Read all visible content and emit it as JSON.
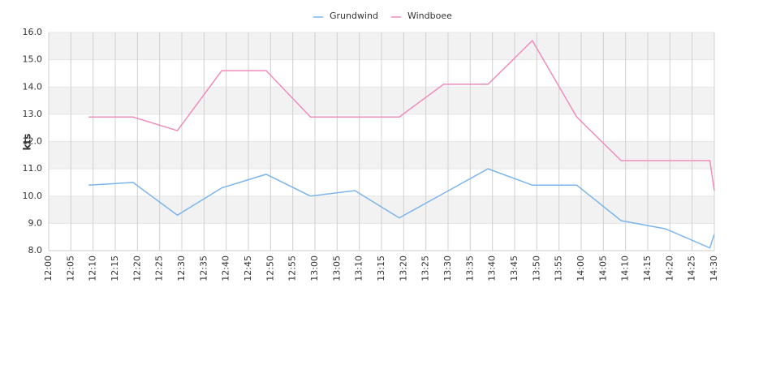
{
  "chart_data": {
    "type": "line",
    "y_label": "kts",
    "x": [
      "12:09",
      "12:19",
      "12:29",
      "12:39",
      "12:49",
      "12:59",
      "13:09",
      "13:19",
      "13:29",
      "13:39",
      "13:49",
      "13:59",
      "14:09",
      "14:19",
      "14:29",
      "14:30"
    ],
    "series": [
      {
        "name": "Grundwind",
        "color": "#7cb5ec",
        "values": [
          10.4,
          10.5,
          9.3,
          10.3,
          10.8,
          10.0,
          10.2,
          9.2,
          10.1,
          11.0,
          10.4,
          10.4,
          9.1,
          8.8,
          8.1,
          8.6
        ]
      },
      {
        "name": "Windboee",
        "color": "#f08cbc",
        "values": [
          12.9,
          12.9,
          12.4,
          14.6,
          14.6,
          12.9,
          12.9,
          12.9,
          14.1,
          14.1,
          15.7,
          12.9,
          11.3,
          11.3,
          11.3,
          10.2
        ]
      }
    ],
    "xlim": [
      "12:00",
      "14:30"
    ],
    "xticks": [
      "12:00",
      "12:05",
      "12:10",
      "12:15",
      "12:20",
      "12:25",
      "12:30",
      "12:35",
      "12:40",
      "12:45",
      "12:50",
      "12:55",
      "13:00",
      "13:05",
      "13:10",
      "13:15",
      "13:20",
      "13:25",
      "13:30",
      "13:35",
      "13:40",
      "13:45",
      "13:50",
      "13:55",
      "14:00",
      "14:05",
      "14:10",
      "14:15",
      "14:20",
      "14:25",
      "14:30"
    ],
    "ylim": [
      8,
      16
    ],
    "yticks": [
      {
        "value": 8,
        "label": "8.0"
      },
      {
        "value": 9,
        "label": "9.0"
      },
      {
        "value": 10,
        "label": "10.0"
      },
      {
        "value": 11,
        "label": "11.0"
      },
      {
        "value": 12,
        "label": "12.0"
      },
      {
        "value": 13,
        "label": "13.0"
      },
      {
        "value": 14,
        "label": "14.0"
      },
      {
        "value": 15,
        "label": "15.0"
      },
      {
        "value": 16,
        "label": "16.0"
      }
    ],
    "grid": true,
    "bands": true,
    "legend": "top"
  }
}
